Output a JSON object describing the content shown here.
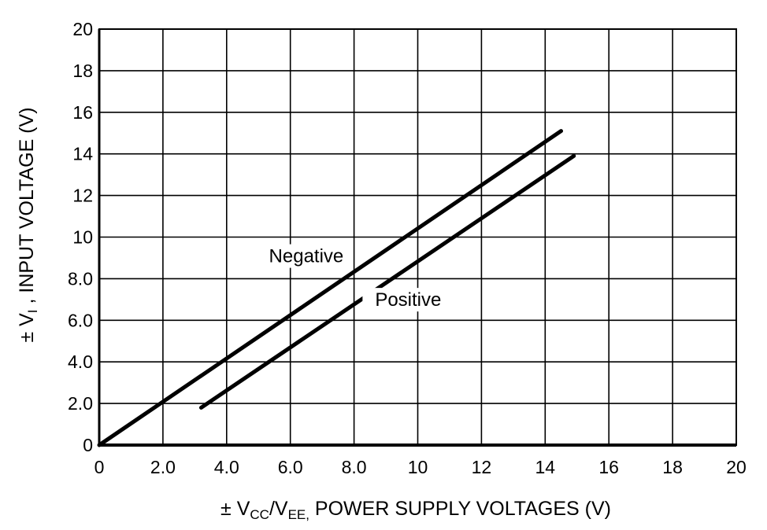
{
  "chart_data": {
    "type": "line",
    "title": "",
    "xlabel": {
      "prefix": "± V",
      "sub1": "CC",
      "mid": "/V",
      "sub2": "EE,",
      "suffix": " POWER SUPPLY VOLTAGES (V)"
    },
    "ylabel": {
      "prefix": "± V",
      "sub": "I",
      "suffix": " , INPUT VOLTAGE (V)"
    },
    "xlim": [
      0,
      20
    ],
    "ylim": [
      0,
      20
    ],
    "grid": true,
    "x_ticks": [
      {
        "value": 0,
        "label": "0"
      },
      {
        "value": 2,
        "label": "2.0"
      },
      {
        "value": 4,
        "label": "4.0"
      },
      {
        "value": 6,
        "label": "6.0"
      },
      {
        "value": 8,
        "label": "8.0"
      },
      {
        "value": 10,
        "label": "10"
      },
      {
        "value": 12,
        "label": "12"
      },
      {
        "value": 14,
        "label": "14"
      },
      {
        "value": 16,
        "label": "16"
      },
      {
        "value": 18,
        "label": "18"
      },
      {
        "value": 20,
        "label": "20"
      }
    ],
    "y_ticks": [
      {
        "value": 0,
        "label": "0"
      },
      {
        "value": 2,
        "label": "2.0"
      },
      {
        "value": 4,
        "label": "4.0"
      },
      {
        "value": 6,
        "label": "6.0"
      },
      {
        "value": 8,
        "label": "8.0"
      },
      {
        "value": 10,
        "label": "10"
      },
      {
        "value": 12,
        "label": "12"
      },
      {
        "value": 14,
        "label": "14"
      },
      {
        "value": 16,
        "label": "16"
      },
      {
        "value": 18,
        "label": "18"
      },
      {
        "value": 20,
        "label": "20"
      }
    ],
    "series": [
      {
        "name": "Negative",
        "x": [
          0,
          14.5
        ],
        "y": [
          0,
          15.1
        ],
        "label_at": [
          6.5,
          8.9
        ]
      },
      {
        "name": "Positive",
        "x": [
          3.2,
          14.9
        ],
        "y": [
          1.8,
          13.9
        ],
        "label_at": [
          9.7,
          6.8
        ]
      }
    ],
    "line_color": "#000000"
  }
}
